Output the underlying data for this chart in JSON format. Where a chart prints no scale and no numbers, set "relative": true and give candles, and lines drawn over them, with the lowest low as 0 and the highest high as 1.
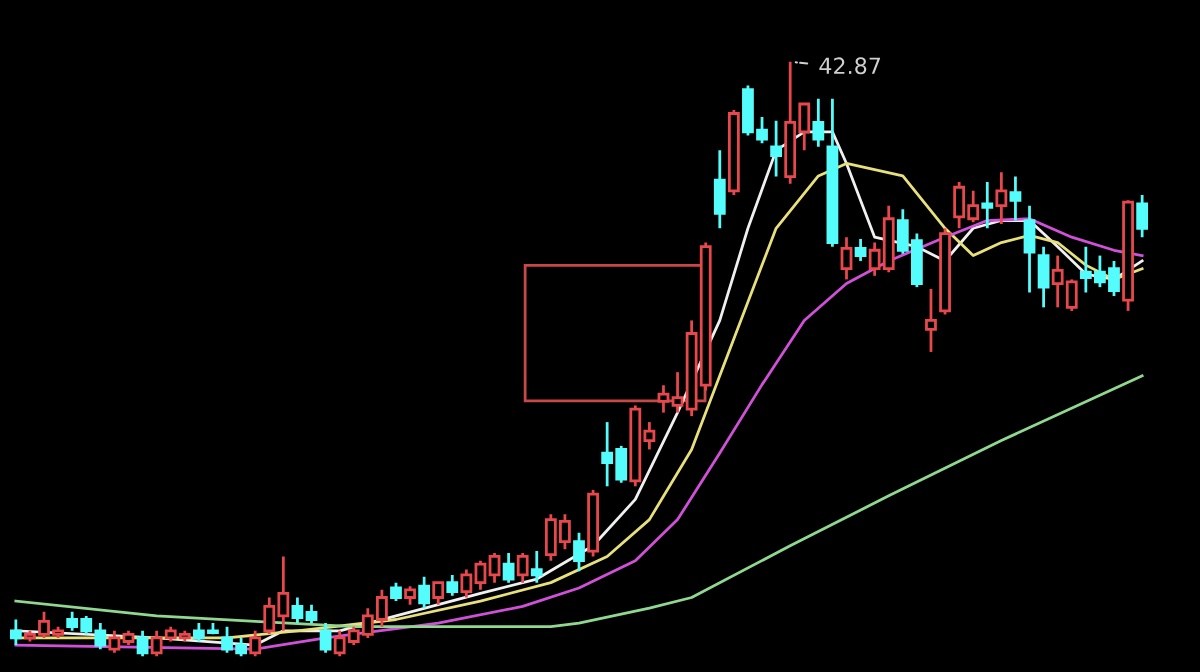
{
  "chart_data": {
    "type": "candlestick",
    "relative": true,
    "legend": false,
    "categories": [
      null,
      null,
      null,
      null,
      null,
      null,
      null,
      null,
      null,
      null,
      null,
      null,
      null,
      null,
      null,
      null,
      null,
      null,
      null,
      null,
      null,
      null,
      null,
      null,
      null,
      null,
      null,
      null,
      null,
      null,
      null,
      null,
      null,
      null,
      null,
      null,
      null,
      null,
      null,
      null,
      null,
      null,
      null,
      null,
      null,
      null,
      null,
      null,
      null,
      null,
      null,
      null,
      null,
      null,
      null,
      null,
      null,
      null,
      null,
      null,
      null,
      null,
      null,
      null,
      null,
      null,
      null,
      null,
      null,
      null,
      null,
      null,
      null,
      null,
      null,
      null,
      null,
      null,
      null,
      null,
      null
    ],
    "ohlc": [
      [
        0.043,
        0.062,
        0.019,
        0.031
      ],
      [
        0.031,
        0.043,
        0.025,
        0.037
      ],
      [
        0.037,
        0.075,
        0.031,
        0.059
      ],
      [
        0.037,
        0.05,
        0.031,
        0.043
      ],
      [
        0.062,
        0.075,
        0.043,
        0.05
      ],
      [
        0.062,
        0.068,
        0.037,
        0.043
      ],
      [
        0.043,
        0.056,
        0.012,
        0.019
      ],
      [
        0.012,
        0.043,
        0.006,
        0.031
      ],
      [
        0.025,
        0.043,
        0.019,
        0.037
      ],
      [
        0.031,
        0.043,
        0,
        0.006
      ],
      [
        0.006,
        0.043,
        0,
        0.031
      ],
      [
        0.031,
        0.05,
        0.025,
        0.043
      ],
      [
        0.031,
        0.043,
        0.025,
        0.037
      ],
      [
        0.043,
        0.056,
        0.025,
        0.031
      ],
      [
        0.043,
        0.056,
        0.037,
        0.04
      ],
      [
        0.031,
        0.05,
        0.006,
        0.012
      ],
      [
        0.019,
        0.031,
        0,
        0.006
      ],
      [
        0.006,
        0.043,
        0,
        0.031
      ],
      [
        0.043,
        0.099,
        0.037,
        0.084
      ],
      [
        0.068,
        0.168,
        0.043,
        0.106
      ],
      [
        0.084,
        0.099,
        0.056,
        0.065
      ],
      [
        0.074,
        0.087,
        0.056,
        0.062
      ],
      [
        0.043,
        0.056,
        0.006,
        0.012
      ],
      [
        0.006,
        0.043,
        0,
        0.031
      ],
      [
        0.025,
        0.05,
        0.019,
        0.043
      ],
      [
        0.037,
        0.081,
        0.031,
        0.068
      ],
      [
        0.062,
        0.112,
        0.05,
        0.099
      ],
      [
        0.115,
        0.124,
        0.093,
        0.099
      ],
      [
        0.099,
        0.118,
        0.087,
        0.112
      ],
      [
        0.118,
        0.134,
        0.081,
        0.09
      ],
      [
        0.099,
        0.124,
        0.087,
        0.124
      ],
      [
        0.124,
        0.137,
        0.102,
        0.109
      ],
      [
        0.109,
        0.146,
        0.099,
        0.137
      ],
      [
        0.124,
        0.161,
        0.112,
        0.155
      ],
      [
        0.137,
        0.174,
        0.124,
        0.168
      ],
      [
        0.155,
        0.174,
        0.124,
        0.13
      ],
      [
        0.137,
        0.174,
        0.124,
        0.168
      ],
      [
        0.146,
        0.177,
        0.124,
        0.137
      ],
      [
        0.171,
        0.239,
        0.161,
        0.23
      ],
      [
        0.193,
        0.239,
        0.18,
        0.227
      ],
      [
        0.193,
        0.208,
        0.143,
        0.161
      ],
      [
        0.177,
        0.28,
        0.168,
        0.273
      ],
      [
        0.342,
        0.394,
        0.286,
        0.326
      ],
      [
        0.348,
        0.354,
        0.292,
        0.298
      ],
      [
        0.295,
        0.422,
        0.286,
        0.416
      ],
      [
        0.363,
        0.394,
        0.348,
        0.379
      ],
      [
        0.429,
        0.456,
        0.41,
        0.441
      ],
      [
        0.422,
        0.478,
        0.41,
        0.435
      ],
      [
        0.416,
        0.565,
        0.404,
        0.543
      ],
      [
        0.456,
        0.696,
        0.447,
        0.689
      ],
      [
        0.801,
        0.851,
        0.72,
        0.745
      ],
      [
        0.783,
        0.919,
        0.776,
        0.913
      ],
      [
        0.953,
        0.96,
        0.876,
        0.882
      ],
      [
        0.885,
        0.907,
        0.863,
        0.87
      ],
      [
        0.857,
        0.901,
        0.807,
        0.842
      ],
      [
        0.807,
        1,
        0.795,
        0.898
      ],
      [
        0.882,
        0.929,
        0.851,
        0.929
      ],
      [
        0.898,
        0.938,
        0.857,
        0.87
      ],
      [
        0.857,
        0.938,
        0.689,
        0.696
      ],
      [
        0.652,
        0.705,
        0.634,
        0.686
      ],
      [
        0.686,
        0.702,
        0.665,
        0.674
      ],
      [
        0.652,
        0.696,
        0.64,
        0.683
      ],
      [
        0.652,
        0.758,
        0.646,
        0.736
      ],
      [
        0.733,
        0.752,
        0.677,
        0.683
      ],
      [
        0.699,
        0.711,
        0.621,
        0.627
      ],
      [
        0.55,
        0.618,
        0.512,
        0.565
      ],
      [
        0.581,
        0.72,
        0.575,
        0.711
      ],
      [
        0.739,
        0.798,
        0.72,
        0.789
      ],
      [
        0.736,
        0.783,
        0.73,
        0.758
      ],
      [
        0.761,
        0.798,
        0.72,
        0.755
      ],
      [
        0.758,
        0.814,
        0.727,
        0.783
      ],
      [
        0.78,
        0.807,
        0.733,
        0.767
      ],
      [
        0.733,
        0.758,
        0.612,
        0.68
      ],
      [
        0.674,
        0.689,
        0.587,
        0.621
      ],
      [
        0.627,
        0.674,
        0.587,
        0.649
      ],
      [
        0.587,
        0.634,
        0.581,
        0.63
      ],
      [
        0.646,
        0.689,
        0.612,
        0.637
      ],
      [
        0.646,
        0.674,
        0.621,
        0.63
      ],
      [
        0.652,
        0.665,
        0.606,
        0.615
      ],
      [
        0.599,
        0.767,
        0.581,
        0.764
      ],
      [
        0.761,
        0.776,
        0.705,
        0.72
      ]
    ],
    "colors": [
      "#54fcfc",
      "#e8484c",
      "#e8484c",
      "#e8484c",
      "#54fcfc",
      "#54fcfc",
      "#54fcfc",
      "#e8484c",
      "#e8484c",
      "#54fcfc",
      "#e8484c",
      "#e8484c",
      "#e8484c",
      "#54fcfc",
      "#54fcfc",
      "#54fcfc",
      "#54fcfc",
      "#e8484c",
      "#e8484c",
      "#e8484c",
      "#54fcfc",
      "#54fcfc",
      "#54fcfc",
      "#e8484c",
      "#e8484c",
      "#e8484c",
      "#e8484c",
      "#54fcfc",
      "#e8484c",
      "#54fcfc",
      "#e8484c",
      "#54fcfc",
      "#e8484c",
      "#e8484c",
      "#e8484c",
      "#54fcfc",
      "#e8484c",
      "#54fcfc",
      "#e8484c",
      "#e8484c",
      "#54fcfc",
      "#e8484c",
      "#54fcfc",
      "#54fcfc",
      "#e8484c",
      "#e8484c",
      "#e8484c",
      "#e8484c",
      "#e8484c",
      "#e8484c",
      "#54fcfc",
      "#e8484c",
      "#54fcfc",
      "#54fcfc",
      "#54fcfc",
      "#e8484c",
      "#e8484c",
      "#54fcfc",
      "#54fcfc",
      "#e8484c",
      "#54fcfc",
      "#e8484c",
      "#e8484c",
      "#54fcfc",
      "#54fcfc",
      "#e8484c",
      "#e8484c",
      "#e8484c",
      "#e8484c",
      "#54fcfc",
      "#e8484c",
      "#54fcfc",
      "#54fcfc",
      "#54fcfc",
      "#e8484c",
      "#e8484c",
      "#54fcfc",
      "#54fcfc",
      "#54fcfc",
      "#e8484c",
      "#54fcfc"
    ],
    "series": [
      {
        "type": "line",
        "color": "#f0f0f0",
        "values": [
          0.043,
          null,
          null,
          null,
          null,
          null,
          null,
          null,
          null,
          null,
          0.031,
          null,
          null,
          null,
          null,
          null,
          null,
          0.019,
          null,
          0.043,
          null,
          null,
          null,
          0.043,
          null,
          null,
          null,
          0.068,
          null,
          null,
          null,
          null,
          null,
          0.106,
          null,
          null,
          null,
          0.13,
          null,
          null,
          null,
          0.186,
          null,
          null,
          0.264,
          null,
          null,
          0.41,
          null,
          null,
          0.565,
          null,
          0.72,
          null,
          0.851,
          null,
          0.882,
          null,
          0.882,
          0.829,
          null,
          0.705,
          null,
          null,
          0.689,
          null,
          0.665,
          null,
          0.72,
          null,
          0.733,
          null,
          0.733,
          null,
          0.689,
          null,
          0.643,
          null,
          0.634,
          null,
          0.665
        ]
      },
      {
        "type": "line",
        "color": "#e8e07a",
        "values": [
          0.031,
          null,
          null,
          null,
          null,
          null,
          null,
          null,
          null,
          null,
          null,
          null,
          null,
          null,
          null,
          0.031,
          null,
          null,
          null,
          null,
          0.043,
          null,
          null,
          null,
          null,
          null,
          null,
          0.062,
          null,
          null,
          null,
          null,
          null,
          0.093,
          null,
          null,
          null,
          null,
          0.124,
          null,
          null,
          null,
          0.168,
          null,
          null,
          0.23,
          null,
          null,
          0.348,
          null,
          null,
          0.534,
          null,
          null,
          0.72,
          null,
          null,
          0.808,
          null,
          0.829,
          null,
          null,
          null,
          0.808,
          null,
          null,
          0.72,
          null,
          0.674,
          null,
          0.696,
          null,
          0.708,
          null,
          0.696,
          null,
          0.658,
          null,
          0.634,
          null,
          0.652
        ]
      },
      {
        "type": "line",
        "color": "#d050d8",
        "values": [
          0.019,
          null,
          null,
          null,
          null,
          null,
          null,
          null,
          null,
          null,
          null,
          null,
          null,
          null,
          null,
          null,
          null,
          0.012,
          null,
          null,
          null,
          null,
          0.031,
          null,
          null,
          null,
          null,
          null,
          null,
          null,
          0.056,
          null,
          null,
          null,
          null,
          null,
          0.084,
          null,
          null,
          null,
          0.115,
          null,
          null,
          null,
          0.161,
          null,
          null,
          0.23,
          null,
          null,
          0.342,
          null,
          null,
          0.457,
          null,
          null,
          0.565,
          null,
          null,
          0.627,
          null,
          null,
          0.665,
          null,
          null,
          null,
          0.705,
          null,
          null,
          0.733,
          null,
          null,
          0.736,
          null,
          null,
          0.705,
          null,
          null,
          0.683,
          null,
          0.674
        ]
      },
      {
        "type": "line",
        "color": "#90d890",
        "values": [
          0.093,
          null,
          null,
          null,
          null,
          null,
          null,
          null,
          null,
          null,
          0.068,
          null,
          null,
          null,
          null,
          null,
          null,
          0.059,
          null,
          null,
          null,
          null,
          null,
          null,
          0.05,
          null,
          null,
          null,
          null,
          null,
          null,
          null,
          0.05,
          null,
          null,
          null,
          null,
          null,
          0.05,
          null,
          0.056,
          null,
          null,
          null,
          null,
          0.081,
          null,
          null,
          0.099,
          null,
          null,
          null,
          null,
          null,
          null,
          0.186,
          null,
          null,
          null,
          null,
          null,
          null,
          0.27,
          null,
          null,
          null,
          null,
          null,
          null,
          null,
          0.363,
          null,
          null,
          null,
          null,
          null,
          null,
          null,
          null,
          null,
          0.472
        ]
      }
    ],
    "annotations": [
      "42.87"
    ]
  }
}
